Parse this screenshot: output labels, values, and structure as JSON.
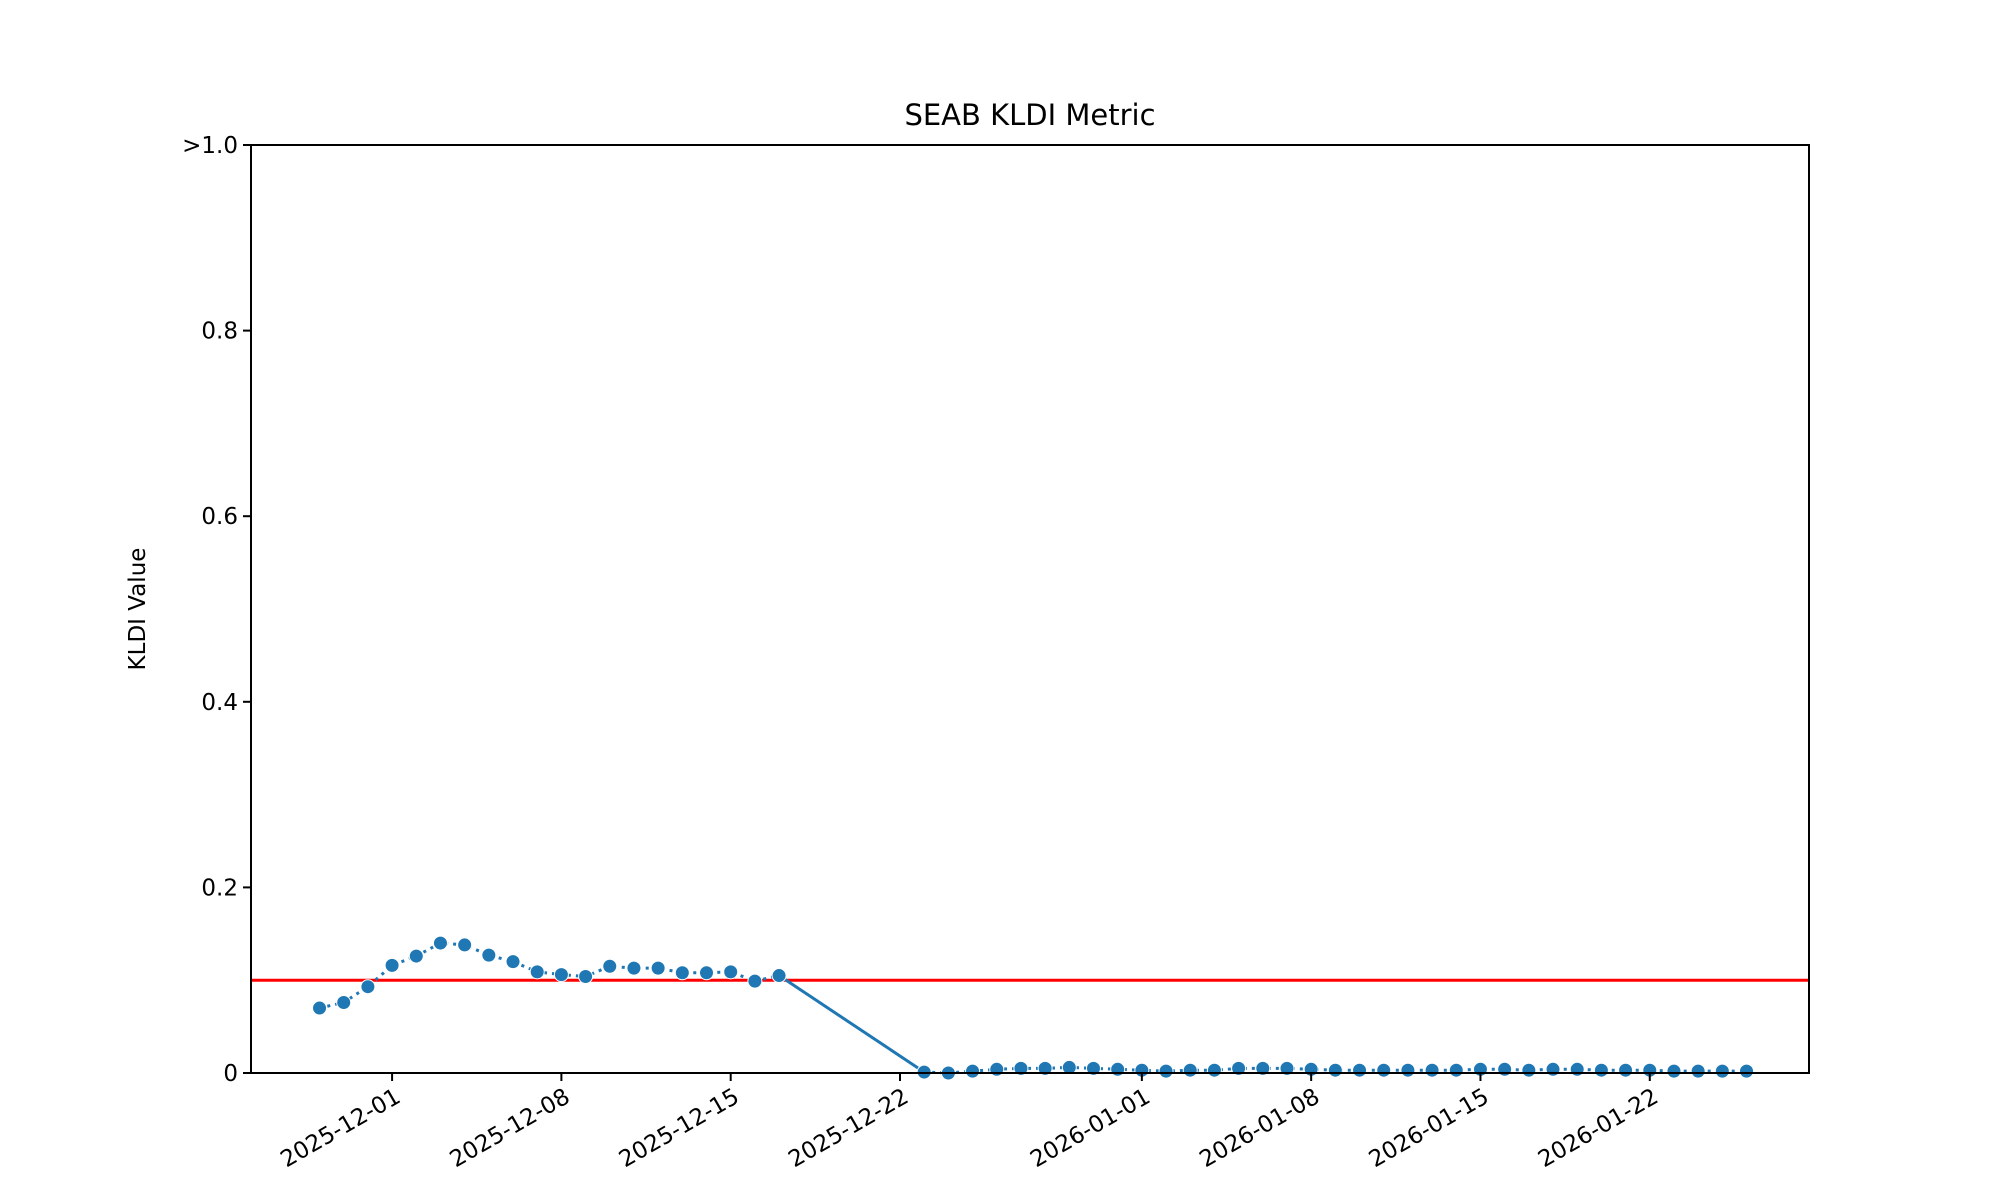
{
  "chart_data": {
    "type": "line",
    "title": "SEAB KLDI Metric",
    "xlabel": "",
    "ylabel": "KLDI Value",
    "ylim": [
      0,
      1.0
    ],
    "xlim": [
      "2025-11-25T04:00:00",
      "2026-01-28T14:00:00"
    ],
    "grid": false,
    "yticks": [
      {
        "value": 0,
        "label": "0"
      },
      {
        "value": 0.2,
        "label": "0.2"
      },
      {
        "value": 0.4,
        "label": "0.4"
      },
      {
        "value": 0.6,
        "label": "0.6"
      },
      {
        "value": 0.8,
        "label": "0.8"
      },
      {
        "value": 1.0,
        "label": ">1.0"
      }
    ],
    "xticks": [
      "2025-12-01",
      "2025-12-08",
      "2025-12-15",
      "2025-12-22",
      "2026-01-01",
      "2026-01-08",
      "2026-01-15",
      "2026-01-22"
    ],
    "threshold": {
      "value": 0.1,
      "color": "#ff0000"
    },
    "series": [
      {
        "name": "KLDI",
        "color": "#1f77b4",
        "start_date": "2025-11-28",
        "segments": [
          {
            "start": "2025-11-28",
            "values": [
              0.07,
              0.076,
              0.093,
              0.116,
              0.126,
              0.14,
              0.138,
              0.127,
              0.12,
              0.109,
              0.106,
              0.104,
              0.115,
              0.113,
              0.113,
              0.108,
              0.108,
              0.109,
              0.099,
              0.105
            ]
          },
          {
            "start": "2025-12-23",
            "values": [
              0.001,
              0.0,
              0.002,
              0.004,
              0.005,
              0.005,
              0.006,
              0.005,
              0.004,
              0.003,
              0.002,
              0.003,
              0.003,
              0.005,
              0.005,
              0.005,
              0.004,
              0.003,
              0.003,
              0.003,
              0.003,
              0.003,
              0.003,
              0.004,
              0.004,
              0.003,
              0.004,
              0.004,
              0.003,
              0.003,
              0.003,
              0.002,
              0.002,
              0.002,
              0.002
            ]
          }
        ]
      }
    ]
  }
}
